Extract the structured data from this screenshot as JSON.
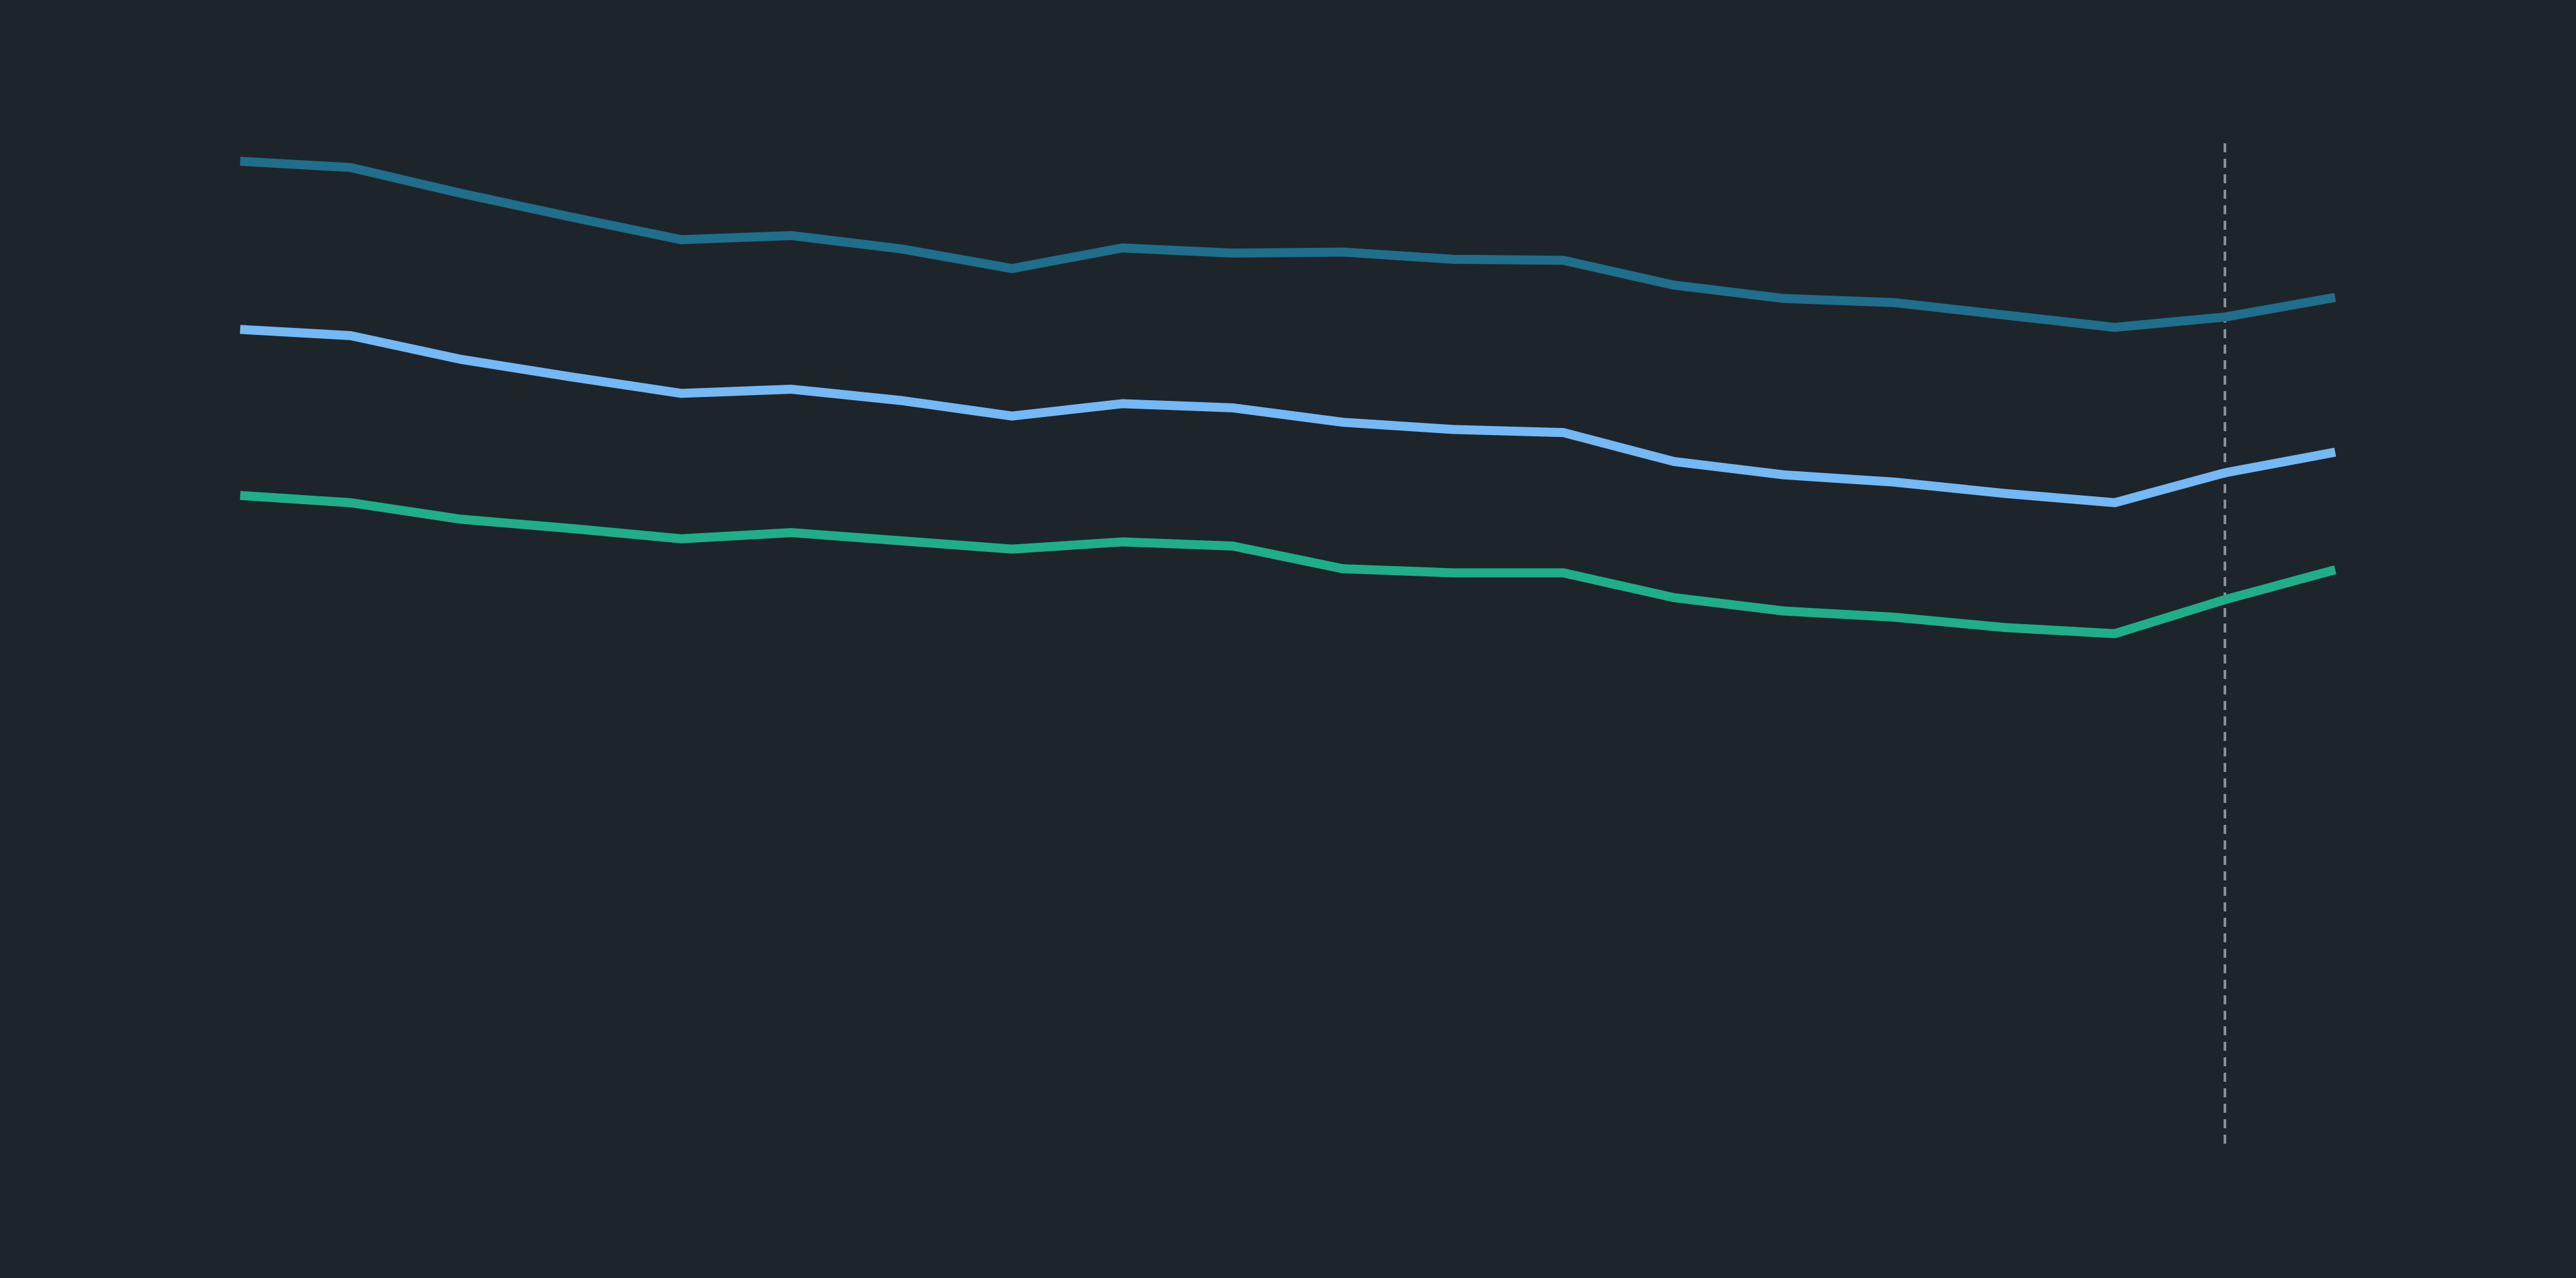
{
  "chart_data": {
    "type": "line",
    "x": [
      1,
      2,
      3,
      4,
      5,
      6,
      7,
      8,
      9,
      10,
      11,
      12,
      13,
      14,
      15,
      16,
      17,
      18,
      19,
      20
    ],
    "ylim": [
      0,
      100
    ],
    "grid": false,
    "legend": "none",
    "background": "#1d252b",
    "marker_line": {
      "x": 19,
      "style": "dashed",
      "color": "#8a9399"
    },
    "series": [
      {
        "color": "#1f6e8c",
        "values": [
          94.5,
          93.9,
          91.4,
          89.1,
          86.9,
          87.3,
          86.0,
          84.1,
          86.1,
          85.6,
          85.7,
          85.0,
          84.9,
          82.5,
          81.2,
          80.8,
          79.6,
          78.4,
          79.4,
          81.3
        ]
      },
      {
        "color": "#74b9f5",
        "values": [
          78.2,
          77.6,
          75.3,
          73.6,
          72.0,
          72.4,
          71.3,
          69.8,
          71.0,
          70.6,
          69.2,
          68.5,
          68.2,
          65.4,
          64.1,
          63.4,
          62.3,
          61.4,
          64.3,
          66.3
        ]
      },
      {
        "color": "#1fae8a",
        "values": [
          62.1,
          61.4,
          59.8,
          58.9,
          57.9,
          58.5,
          57.7,
          56.9,
          57.6,
          57.2,
          55.0,
          54.6,
          54.6,
          52.2,
          50.9,
          50.3,
          49.3,
          48.7,
          52.0,
          54.9
        ]
      }
    ]
  }
}
